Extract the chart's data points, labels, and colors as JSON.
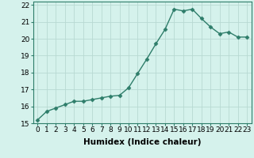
{
  "x": [
    0,
    1,
    2,
    3,
    4,
    5,
    6,
    7,
    8,
    9,
    10,
    11,
    12,
    13,
    14,
    15,
    16,
    17,
    18,
    19,
    20,
    21,
    22,
    23
  ],
  "y": [
    15.2,
    15.7,
    15.9,
    16.1,
    16.3,
    16.3,
    16.4,
    16.5,
    16.6,
    16.65,
    17.1,
    17.95,
    18.8,
    19.7,
    20.55,
    21.75,
    21.65,
    21.75,
    21.2,
    20.7,
    20.3,
    20.4,
    20.1,
    20.1
  ],
  "xlabel": "Humidex (Indice chaleur)",
  "ylim": [
    15,
    22.2
  ],
  "xlim": [
    -0.5,
    23.5
  ],
  "yticks": [
    15,
    16,
    17,
    18,
    19,
    20,
    21,
    22
  ],
  "xticks": [
    0,
    1,
    2,
    3,
    4,
    5,
    6,
    7,
    8,
    9,
    10,
    11,
    12,
    13,
    14,
    15,
    16,
    17,
    18,
    19,
    20,
    21,
    22,
    23
  ],
  "line_color": "#2e7d6a",
  "marker": "D",
  "marker_size": 2.5,
  "line_width": 1.0,
  "bg_color": "#d5f2ec",
  "grid_color": "#b8d9d2",
  "xlabel_fontsize": 7.5,
  "tick_fontsize": 6.5,
  "spine_color": "#2e7d6a"
}
